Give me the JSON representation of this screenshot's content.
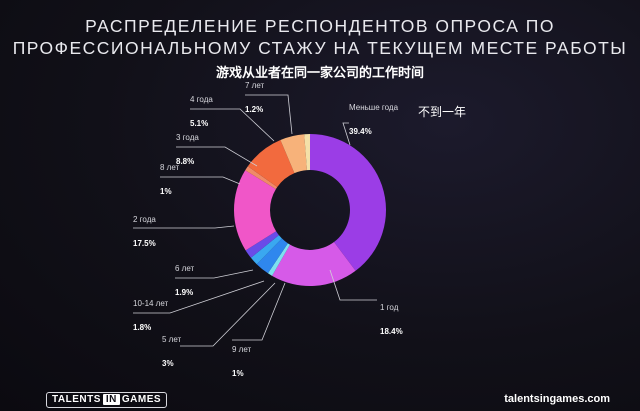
{
  "title_line1": "РАСПРЕДЕЛЕНИЕ РЕСПОНДЕНТОВ ОПРОСА ПО",
  "title_line2": "ПРОФЕССИОНАЛЬНОМУ СТАЖУ НА ТЕКУЩЕМ МЕСТЕ РАБОТЫ",
  "subtitle_cn": "游戏从业者在同一家公司的工作时间",
  "annotation_cn": "不到一年",
  "footer": {
    "logo_left": "TALENTS",
    "logo_in": "IN",
    "logo_right": "GAMES",
    "url": "talentsingames.com"
  },
  "chart_data": {
    "type": "pie",
    "donut": true,
    "slices": [
      {
        "label": "Меньше года",
        "value_label": "39.4%",
        "value": 39.4,
        "color": "#9b3de6"
      },
      {
        "label": "1 год",
        "value_label": "18.4%",
        "value": 18.4,
        "color": "#d65ae8"
      },
      {
        "label": "9 лет",
        "value_label": "1%",
        "value": 1.0,
        "color": "#7ee0f0"
      },
      {
        "label": "5 лет",
        "value_label": "3%",
        "value": 3.0,
        "color": "#2f87ee"
      },
      {
        "label": "10-14 лет",
        "value_label": "1.8%",
        "value": 1.8,
        "color": "#3aa8f0"
      },
      {
        "label": "6 лет",
        "value_label": "1.9%",
        "value": 1.9,
        "color": "#6a4be8"
      },
      {
        "label": "2 года",
        "value_label": "17.5%",
        "value": 17.5,
        "color": "#f056c8"
      },
      {
        "label": "8 лет",
        "value_label": "1%",
        "value": 1.0,
        "color": "#f08a68"
      },
      {
        "label": "3 года",
        "value_label": "8.8%",
        "value": 8.8,
        "color": "#f26a3e"
      },
      {
        "label": "4 года",
        "value_label": "5.1%",
        "value": 5.1,
        "color": "#f7b27a"
      },
      {
        "label": "7 лет",
        "value_label": "1.2%",
        "value": 1.2,
        "color": "#f4e0a8"
      }
    ]
  }
}
